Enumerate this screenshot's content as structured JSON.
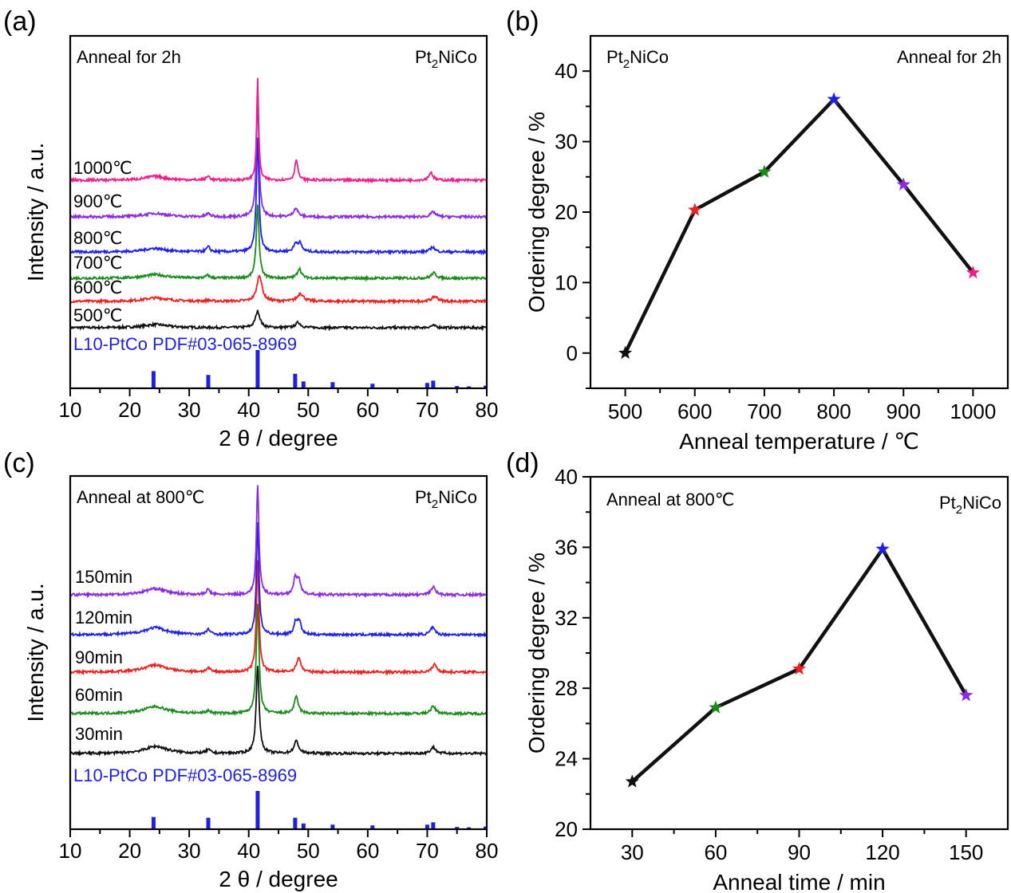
{
  "colors": {
    "black": "#111111",
    "red": "#ef2020",
    "green": "#1a8a1a",
    "blue": "#1f1fe8",
    "purple": "#8a2be2",
    "magenta": "#ee1e8a",
    "ref": "#1f1fdc"
  },
  "chart_data": [
    {
      "panel": "(a)",
      "type": "line",
      "title": "",
      "xlabel": "2 θ / degree",
      "ylabel": "Intensity / a.u.",
      "xlim": [
        10,
        80
      ],
      "xticks": [
        10,
        20,
        30,
        40,
        50,
        60,
        70,
        80
      ],
      "annotation_left": "Anneal for 2h",
      "annotation_right_base": "Pt",
      "annotation_right_sub": "2",
      "annotation_right_tail": "NiCo",
      "ref_label": "L10-PtCo PDF#03-065-8969",
      "ref_peaks": [
        {
          "x": 24.0,
          "h": 0.45
        },
        {
          "x": 33.2,
          "h": 0.35
        },
        {
          "x": 41.5,
          "h": 1.0
        },
        {
          "x": 47.8,
          "h": 0.38
        },
        {
          "x": 49.2,
          "h": 0.18
        },
        {
          "x": 54.1,
          "h": 0.16
        },
        {
          "x": 60.8,
          "h": 0.12
        },
        {
          "x": 70.0,
          "h": 0.14
        },
        {
          "x": 71.0,
          "h": 0.2
        },
        {
          "x": 75.0,
          "h": 0.06
        },
        {
          "x": 77.0,
          "h": 0.05
        },
        {
          "x": 79.8,
          "h": 0.07
        }
      ],
      "series": [
        {
          "name": "500℃",
          "color_key": "black",
          "peaks": [
            [
              24.4,
              0.18,
              2.4
            ],
            [
              33.2,
              0.0,
              0.5
            ],
            [
              41.5,
              0.95,
              0.45
            ],
            [
              48.3,
              0.3,
              0.5
            ],
            [
              71.0,
              0.12,
              0.6
            ]
          ]
        },
        {
          "name": "600℃",
          "color_key": "red",
          "peaks": [
            [
              24.4,
              0.2,
              2.4
            ],
            [
              33.2,
              0.05,
              0.5
            ],
            [
              41.8,
              1.5,
              0.5
            ],
            [
              48.7,
              0.45,
              0.6
            ],
            [
              71.3,
              0.28,
              0.6
            ]
          ]
        },
        {
          "name": "700℃",
          "color_key": "green",
          "peaks": [
            [
              24.3,
              0.2,
              2.4
            ],
            [
              33.1,
              0.15,
              0.4
            ],
            [
              41.5,
              4.2,
              0.28
            ],
            [
              48.5,
              0.55,
              0.4
            ],
            [
              71.1,
              0.3,
              0.5
            ]
          ]
        },
        {
          "name": "800℃",
          "color_key": "blue",
          "peaks": [
            [
              24.2,
              0.2,
              2.2
            ],
            [
              33.2,
              0.28,
              0.35
            ],
            [
              41.5,
              6.5,
              0.26
            ],
            [
              47.9,
              0.45,
              0.4
            ],
            [
              48.6,
              0.45,
              0.4
            ],
            [
              70.9,
              0.28,
              0.45
            ]
          ]
        },
        {
          "name": "900℃",
          "color_key": "purple",
          "peaks": [
            [
              24.3,
              0.2,
              2.2
            ],
            [
              33.2,
              0.18,
              0.4
            ],
            [
              41.5,
              6.8,
              0.26
            ],
            [
              47.9,
              0.5,
              0.45
            ],
            [
              71.0,
              0.28,
              0.5
            ]
          ]
        },
        {
          "name": "1000℃",
          "color_key": "magenta",
          "peaks": [
            [
              24.2,
              0.22,
              2.0
            ],
            [
              33.2,
              0.22,
              0.35
            ],
            [
              41.5,
              5.8,
              0.2
            ],
            [
              48.0,
              1.2,
              0.3
            ],
            [
              70.6,
              0.45,
              0.4
            ]
          ]
        }
      ]
    },
    {
      "panel": "(b)",
      "type": "line",
      "title": "",
      "xlabel": "Anneal temperature / ℃",
      "ylabel": "Ordering degree / %",
      "xlim": [
        450,
        1050
      ],
      "ylim": [
        -5,
        45
      ],
      "xticks": [
        500,
        600,
        700,
        800,
        900,
        1000
      ],
      "yticks": [
        0,
        10,
        20,
        30,
        40
      ],
      "annotation_left_base": "Pt",
      "annotation_left_sub": "2",
      "annotation_left_tail": "NiCo",
      "annotation_right": "Anneal for 2h",
      "x": [
        500,
        600,
        700,
        800,
        900,
        1000
      ],
      "y": [
        0,
        20.3,
        25.7,
        36.0,
        23.9,
        11.4
      ],
      "marker_color_keys": [
        "black",
        "red",
        "green",
        "blue",
        "purple",
        "magenta"
      ]
    },
    {
      "panel": "(c)",
      "type": "line",
      "title": "",
      "xlabel": "2 θ / degree",
      "ylabel": "Intensity / a.u.",
      "xlim": [
        10,
        80
      ],
      "xticks": [
        10,
        20,
        30,
        40,
        50,
        60,
        70,
        80
      ],
      "annotation_left": "Anneal at 800℃",
      "annotation_right_base": "Pt",
      "annotation_right_sub": "2",
      "annotation_right_tail": "NiCo",
      "ref_label": "L10-PtCo PDF#03-065-8969",
      "ref_peaks": [
        {
          "x": 24.0,
          "h": 0.32
        },
        {
          "x": 33.2,
          "h": 0.3
        },
        {
          "x": 41.5,
          "h": 1.0
        },
        {
          "x": 47.8,
          "h": 0.3
        },
        {
          "x": 49.2,
          "h": 0.15
        },
        {
          "x": 54.1,
          "h": 0.12
        },
        {
          "x": 60.8,
          "h": 0.1
        },
        {
          "x": 70.0,
          "h": 0.12
        },
        {
          "x": 71.0,
          "h": 0.18
        },
        {
          "x": 75.0,
          "h": 0.06
        },
        {
          "x": 77.0,
          "h": 0.05
        },
        {
          "x": 79.8,
          "h": 0.07
        }
      ],
      "series": [
        {
          "name": "30min",
          "color_key": "black",
          "peaks": [
            [
              24.4,
              0.4,
              2.3
            ],
            [
              33.2,
              0.2,
              0.4
            ],
            [
              41.5,
              5.0,
              0.3
            ],
            [
              48.0,
              0.7,
              0.45
            ],
            [
              71.0,
              0.35,
              0.5
            ]
          ]
        },
        {
          "name": "60min",
          "color_key": "green",
          "peaks": [
            [
              24.3,
              0.4,
              2.3
            ],
            [
              33.2,
              0.15,
              0.4
            ],
            [
              41.5,
              6.3,
              0.28
            ],
            [
              48.0,
              0.95,
              0.4
            ],
            [
              71.0,
              0.4,
              0.5
            ]
          ]
        },
        {
          "name": "90min",
          "color_key": "red",
          "peaks": [
            [
              24.3,
              0.4,
              2.3
            ],
            [
              33.2,
              0.2,
              0.4
            ],
            [
              41.5,
              6.4,
              0.26
            ],
            [
              48.4,
              0.85,
              0.4
            ],
            [
              71.2,
              0.45,
              0.45
            ]
          ]
        },
        {
          "name": "120min",
          "color_key": "blue",
          "peaks": [
            [
              24.3,
              0.4,
              2.2
            ],
            [
              33.2,
              0.3,
              0.35
            ],
            [
              41.5,
              6.4,
              0.25
            ],
            [
              47.9,
              0.7,
              0.35
            ],
            [
              48.5,
              0.7,
              0.35
            ],
            [
              70.9,
              0.4,
              0.45
            ]
          ]
        },
        {
          "name": "150min",
          "color_key": "purple",
          "peaks": [
            [
              24.3,
              0.35,
              2.2
            ],
            [
              33.2,
              0.3,
              0.35
            ],
            [
              41.5,
              6.3,
              0.25
            ],
            [
              47.8,
              0.85,
              0.35
            ],
            [
              48.4,
              0.85,
              0.35
            ],
            [
              71.0,
              0.45,
              0.45
            ]
          ]
        }
      ]
    },
    {
      "panel": "(d)",
      "type": "line",
      "title": "",
      "xlabel": "Anneal time / min",
      "ylabel": "Ordering degree / %",
      "xlim": [
        15,
        165
      ],
      "ylim": [
        20,
        40
      ],
      "xticks": [
        30,
        60,
        90,
        120,
        150
      ],
      "yticks": [
        20,
        24,
        28,
        32,
        36,
        40
      ],
      "annotation_left": "Anneal at 800℃",
      "annotation_right_base": "Pt",
      "annotation_right_sub": "2",
      "annotation_right_tail": "NiCo",
      "x": [
        30,
        60,
        90,
        120,
        150
      ],
      "y": [
        22.7,
        26.9,
        29.1,
        35.9,
        27.6
      ],
      "marker_color_keys": [
        "black",
        "green",
        "red",
        "blue",
        "purple"
      ]
    }
  ]
}
